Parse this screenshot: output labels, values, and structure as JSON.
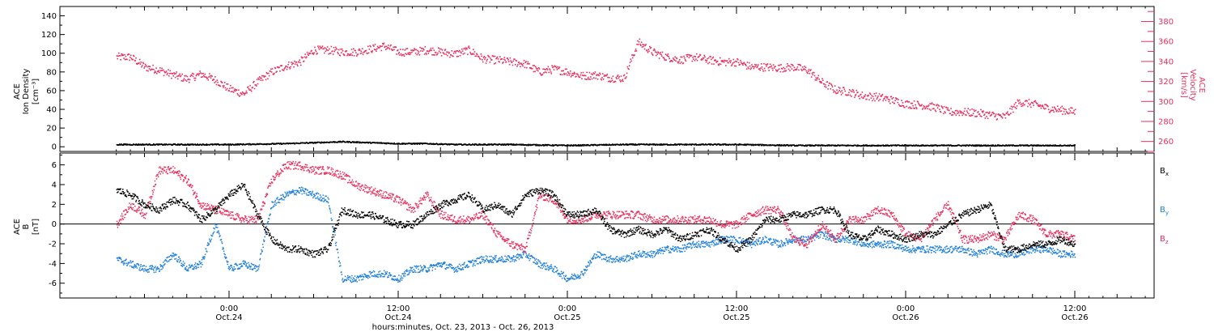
{
  "colors": {
    "density": "#000000",
    "velocity": "#e8305e",
    "bx": "#000000",
    "by": "#1f7fd9",
    "bz": "#e8305e",
    "axis": "#000000"
  },
  "chart_data": [
    {
      "type": "scatter",
      "panel": "top",
      "x_unit": "hours since 2013-10-23 00:00",
      "xlim": [
        16,
        84
      ],
      "ylabel": [
        "ACE",
        "Ion Density",
        "[cm⁻³]"
      ],
      "ylim": [
        -5,
        150
      ],
      "yticks": [
        0,
        20,
        40,
        60,
        80,
        100,
        120,
        140
      ],
      "ylabel_right": [
        "ACE",
        "Velocity",
        "[km/s]"
      ],
      "ylim_right": [
        250,
        395
      ],
      "yticks_right": [
        260,
        280,
        300,
        320,
        340,
        360,
        380
      ],
      "series": [
        {
          "key": "density",
          "axis": "left",
          "x": [
            16,
            20,
            24,
            28,
            30,
            32,
            34,
            36,
            38,
            40,
            44,
            48,
            52,
            56,
            60,
            64,
            68,
            72,
            76,
            80,
            84
          ],
          "values": [
            3,
            3,
            3,
            4,
            5,
            6,
            5,
            4,
            4,
            3,
            3,
            2,
            3,
            3,
            3,
            2,
            2,
            2,
            2,
            2,
            2
          ]
        },
        {
          "key": "velocity",
          "axis": "right",
          "x": [
            16,
            17,
            18,
            19,
            20,
            21,
            22,
            23,
            24,
            25,
            26,
            27,
            28,
            29,
            30,
            31,
            32,
            33,
            34,
            35,
            36,
            37,
            38,
            39,
            40,
            41,
            42,
            43,
            44,
            45,
            46,
            47,
            48,
            49,
            50,
            51,
            52,
            53,
            54,
            55,
            56,
            57,
            58,
            59,
            60,
            61,
            62,
            63,
            64,
            65,
            66,
            67,
            68,
            69,
            70,
            71,
            72,
            73,
            74,
            75,
            76,
            77,
            78,
            79,
            80,
            81,
            82,
            83,
            84
          ],
          "values": [
            345,
            345,
            335,
            332,
            327,
            323,
            328,
            322,
            313,
            308,
            320,
            330,
            336,
            340,
            352,
            352,
            350,
            350,
            353,
            356,
            350,
            350,
            352,
            350,
            348,
            352,
            343,
            342,
            340,
            338,
            330,
            333,
            330,
            326,
            327,
            324,
            324,
            360,
            350,
            345,
            342,
            345,
            342,
            340,
            340,
            335,
            335,
            334,
            335,
            332,
            320,
            312,
            310,
            306,
            305,
            302,
            298,
            297,
            295,
            290,
            290,
            289,
            287,
            285,
            300,
            298,
            294,
            292,
            290
          ]
        }
      ]
    },
    {
      "type": "scatter",
      "panel": "bottom",
      "x_unit": "hours since 2013-10-23 00:00",
      "xlim": [
        16,
        84
      ],
      "ylabel": [
        "ACE",
        "B",
        "[nT]"
      ],
      "ylim": [
        -7.5,
        7.2
      ],
      "yticks": [
        -6,
        -4,
        -2,
        0,
        2,
        4,
        6
      ],
      "legend": [
        "Bx",
        "By",
        "Bz"
      ],
      "x_label": "hours:minutes, Oct. 23, 2013 - Oct. 26, 2013",
      "x_ticks": [
        {
          "x": 24,
          "time": "0:00",
          "date": "Oct.24"
        },
        {
          "x": 36,
          "time": "12:00",
          "date": "Oct.24"
        },
        {
          "x": 48,
          "time": "0:00",
          "date": "Oct.25"
        },
        {
          "x": 60,
          "time": "12:00",
          "date": "Oct.25"
        },
        {
          "x": 72,
          "time": "0:00",
          "date": "Oct.26"
        },
        {
          "x": 84,
          "time": "12:00",
          "date": "Oct.26"
        }
      ],
      "series": [
        {
          "key": "bx",
          "label": "Bx",
          "x": [
            16,
            17,
            18,
            19,
            20,
            21,
            22,
            23,
            24,
            25,
            26,
            27,
            28,
            29,
            30,
            31,
            32,
            33,
            34,
            35,
            36,
            37,
            38,
            39,
            40,
            41,
            42,
            43,
            44,
            45,
            46,
            47,
            48,
            49,
            50,
            51,
            52,
            53,
            54,
            55,
            56,
            57,
            58,
            59,
            60,
            61,
            62,
            63,
            64,
            65,
            66,
            67,
            68,
            69,
            70,
            71,
            72,
            73,
            74,
            75,
            76,
            77,
            78,
            79,
            80,
            81,
            82,
            83,
            84
          ],
          "values": [
            3.5,
            3.0,
            2.0,
            1.5,
            2.5,
            2.0,
            0.5,
            1.5,
            3.0,
            4.0,
            1.0,
            -1.5,
            -2.5,
            -2.5,
            -3.0,
            -2.5,
            1.5,
            1.0,
            1.0,
            0.5,
            0.0,
            0.0,
            1.0,
            2.0,
            2.5,
            3.0,
            1.5,
            2.0,
            1.0,
            3.0,
            3.5,
            3.0,
            1.0,
            1.0,
            1.5,
            -0.5,
            -1.0,
            -0.5,
            -1.0,
            -0.5,
            -1.5,
            -1.0,
            -0.5,
            -1.5,
            -2.5,
            -1.5,
            0.5,
            0.5,
            1.0,
            1.0,
            1.5,
            1.5,
            -1.0,
            -1.5,
            -0.5,
            -1.0,
            -1.5,
            -1.0,
            -1.0,
            0.0,
            1.0,
            1.5,
            2.0,
            -2.5,
            -2.5,
            -2.0,
            -2.0,
            -1.5,
            -2.0
          ]
        },
        {
          "key": "by",
          "label": "By",
          "x": [
            16,
            17,
            18,
            19,
            20,
            21,
            22,
            23,
            24,
            25,
            26,
            27,
            28,
            29,
            30,
            31,
            32,
            33,
            34,
            35,
            36,
            37,
            38,
            39,
            40,
            41,
            42,
            43,
            44,
            45,
            46,
            47,
            48,
            49,
            50,
            51,
            52,
            53,
            54,
            55,
            56,
            57,
            58,
            59,
            60,
            61,
            62,
            63,
            64,
            65,
            66,
            67,
            68,
            69,
            70,
            71,
            72,
            73,
            74,
            75,
            76,
            77,
            78,
            79,
            80,
            81,
            82,
            83,
            84
          ],
          "values": [
            -3.5,
            -4.0,
            -4.5,
            -4.5,
            -3.0,
            -4.5,
            -4.0,
            0.0,
            -4.5,
            -4.0,
            -4.5,
            2.0,
            3.0,
            3.5,
            3.0,
            2.5,
            -5.5,
            -5.5,
            -5.0,
            -5.0,
            -5.5,
            -4.5,
            -4.5,
            -4.0,
            -4.5,
            -4.0,
            -3.5,
            -3.5,
            -3.5,
            -3.0,
            -4.0,
            -4.5,
            -5.5,
            -5.0,
            -3.0,
            -3.5,
            -3.5,
            -3.0,
            -3.0,
            -2.5,
            -2.5,
            -2.0,
            -2.0,
            -1.5,
            -1.5,
            -2.0,
            -1.5,
            -2.0,
            -1.5,
            -1.5,
            -1.0,
            -1.5,
            -1.5,
            -2.0,
            -2.0,
            -2.0,
            -2.5,
            -2.5,
            -2.5,
            -2.5,
            -2.5,
            -3.0,
            -2.5,
            -3.0,
            -3.0,
            -2.5,
            -2.5,
            -3.0,
            -3.0
          ]
        },
        {
          "key": "bz",
          "label": "Bz",
          "x": [
            16,
            17,
            18,
            19,
            20,
            21,
            22,
            23,
            24,
            25,
            26,
            27,
            28,
            29,
            30,
            31,
            32,
            33,
            34,
            35,
            36,
            37,
            38,
            39,
            40,
            41,
            42,
            43,
            44,
            45,
            46,
            47,
            48,
            49,
            50,
            51,
            52,
            53,
            54,
            55,
            56,
            57,
            58,
            59,
            60,
            61,
            62,
            63,
            64,
            65,
            66,
            67,
            68,
            69,
            70,
            71,
            72,
            73,
            74,
            75,
            76,
            77,
            78,
            79,
            80,
            81,
            82,
            83,
            84
          ],
          "values": [
            0.0,
            2.0,
            1.0,
            5.5,
            5.5,
            4.5,
            2.0,
            1.5,
            1.0,
            0.5,
            0.5,
            4.5,
            6.0,
            6.0,
            5.5,
            5.5,
            5.0,
            4.0,
            3.5,
            3.0,
            2.5,
            1.5,
            3.0,
            1.0,
            0.5,
            0.5,
            1.0,
            -1.0,
            -2.0,
            -2.5,
            3.0,
            2.5,
            0.5,
            0.5,
            1.0,
            1.0,
            1.0,
            1.0,
            0.5,
            0.5,
            0.5,
            0.5,
            0.5,
            0.0,
            0.0,
            1.0,
            1.5,
            1.5,
            -1.5,
            -2.0,
            0.0,
            -1.5,
            0.5,
            0.5,
            1.5,
            1.0,
            -1.0,
            -1.5,
            0.5,
            2.0,
            -1.5,
            -1.5,
            -1.0,
            -1.5,
            1.0,
            0.5,
            -1.0,
            -1.0,
            -1.5
          ]
        }
      ]
    }
  ]
}
